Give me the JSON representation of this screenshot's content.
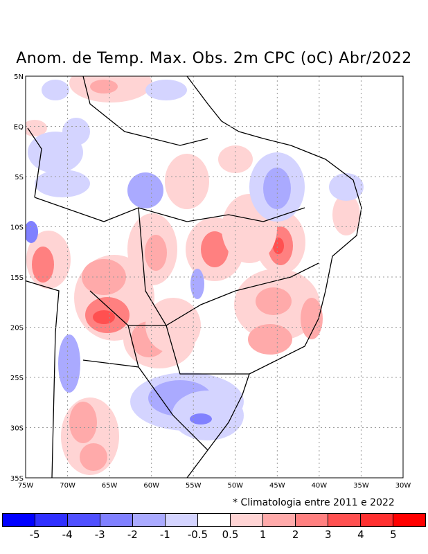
{
  "title": "Anom. de Temp. Max. Obs. 2m CPC (oC) Abr/2022",
  "note": "* Climatologia entre 2011 e 2022",
  "chart_data": {
    "type": "heatmap",
    "title": "Anom. de Temp. Max. Obs. 2m CPC (oC) Abr/2022",
    "xlim": [
      -75,
      -30
    ],
    "ylim": [
      -35,
      5
    ],
    "x_ticks": [
      "75W",
      "70W",
      "65W",
      "60W",
      "55W",
      "50W",
      "45W",
      "40W",
      "35W",
      "30W"
    ],
    "y_ticks": [
      "5N",
      "EQ",
      "5S",
      "10S",
      "15S",
      "20S",
      "25S",
      "30S",
      "35S"
    ],
    "grid": true,
    "colorbar": {
      "labels": [
        "-5",
        "-4",
        "-3",
        "-2",
        "-1",
        "-0.5",
        "0.5",
        "1",
        "2",
        "3",
        "4",
        "5"
      ],
      "colors": [
        "#0000ff",
        "#3030ff",
        "#5050ff",
        "#8080ff",
        "#aaaaff",
        "#d4d4ff",
        "#ffffff",
        "#ffd4d4",
        "#ffaaaa",
        "#ff8080",
        "#ff5050",
        "#ff3030",
        "#ff0000"
      ]
    }
  }
}
